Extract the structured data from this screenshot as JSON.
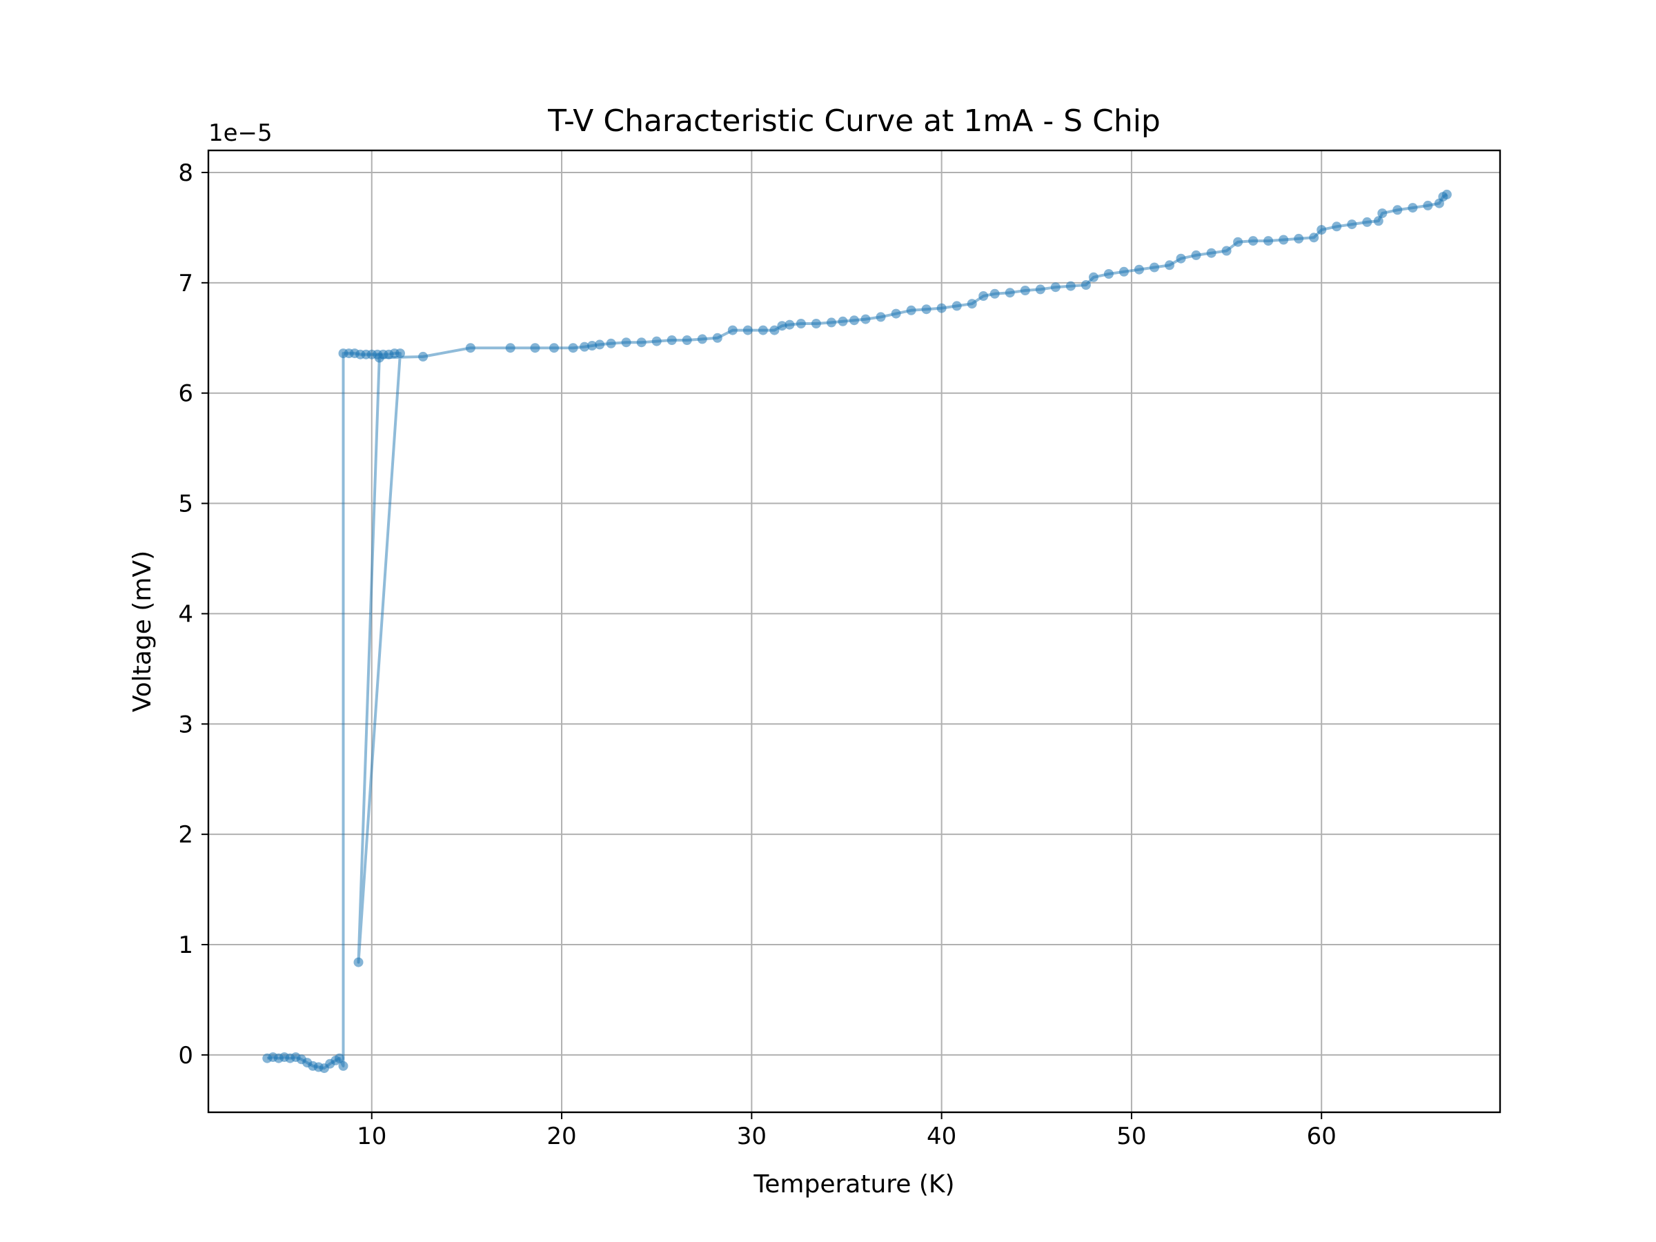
{
  "chart_data": {
    "type": "line",
    "title": "T-V Characteristic Curve at 1mA - S Chip",
    "xlabel": "Temperature (K)",
    "ylabel": "Voltage (mV)",
    "y_offset_label": "1e−5",
    "y_multiplier": 1e-05,
    "xlim": [
      1.4,
      69.4
    ],
    "ylim": [
      -0.52,
      8.2
    ],
    "x_ticks": [
      10,
      20,
      30,
      40,
      50,
      60
    ],
    "x_tick_labels": [
      "10",
      "20",
      "30",
      "40",
      "50",
      "60"
    ],
    "y_ticks": [
      0,
      1,
      2,
      3,
      4,
      5,
      6,
      7,
      8
    ],
    "y_tick_labels": [
      "0",
      "1",
      "2",
      "3",
      "4",
      "5",
      "6",
      "7",
      "8"
    ],
    "grid": true,
    "series_color": "#1f77b4",
    "series": [
      {
        "name": "",
        "x": [
          4.5,
          4.8,
          5.1,
          5.4,
          5.7,
          6.0,
          6.3,
          6.6,
          6.9,
          7.2,
          7.5,
          7.8,
          8.1,
          8.3,
          8.5,
          8.5,
          8.8,
          9.1,
          9.4,
          9.7,
          10.0,
          10.3,
          10.6,
          10.9,
          11.2,
          11.5,
          9.3,
          10.4,
          12.7,
          15.2,
          17.3,
          18.6,
          19.6,
          20.6,
          21.2,
          21.6,
          22.0,
          22.6,
          23.4,
          24.2,
          25.0,
          25.8,
          26.6,
          27.4,
          28.2,
          29.0,
          29.8,
          30.6,
          31.2,
          31.6,
          32.0,
          32.6,
          33.4,
          34.2,
          34.8,
          35.4,
          36.0,
          36.8,
          37.6,
          38.4,
          39.2,
          40.0,
          40.8,
          41.6,
          42.2,
          42.8,
          43.6,
          44.4,
          45.2,
          46.0,
          46.8,
          47.6,
          48.0,
          48.8,
          49.6,
          50.4,
          51.2,
          52.0,
          52.6,
          53.4,
          54.2,
          55.0,
          55.6,
          56.4,
          57.2,
          58.0,
          58.8,
          59.6,
          60.0,
          60.8,
          61.6,
          62.4,
          63.0,
          63.2,
          64.0,
          64.8,
          65.6,
          66.2,
          66.4,
          66.6
        ],
        "y": [
          -0.03,
          -0.02,
          -0.03,
          -0.02,
          -0.03,
          -0.02,
          -0.04,
          -0.07,
          -0.1,
          -0.11,
          -0.12,
          -0.08,
          -0.05,
          -0.03,
          -0.1,
          6.36,
          6.36,
          6.36,
          6.35,
          6.35,
          6.35,
          6.35,
          6.35,
          6.35,
          6.36,
          6.36,
          0.84,
          6.32,
          6.33,
          6.41,
          6.41,
          6.41,
          6.41,
          6.41,
          6.42,
          6.43,
          6.44,
          6.45,
          6.46,
          6.46,
          6.47,
          6.48,
          6.48,
          6.49,
          6.5,
          6.57,
          6.57,
          6.57,
          6.57,
          6.61,
          6.62,
          6.63,
          6.63,
          6.64,
          6.65,
          6.66,
          6.67,
          6.69,
          6.72,
          6.75,
          6.76,
          6.77,
          6.79,
          6.81,
          6.88,
          6.9,
          6.91,
          6.93,
          6.94,
          6.96,
          6.97,
          6.98,
          7.05,
          7.08,
          7.1,
          7.12,
          7.14,
          7.16,
          7.22,
          7.25,
          7.27,
          7.29,
          7.37,
          7.38,
          7.38,
          7.39,
          7.4,
          7.41,
          7.48,
          7.51,
          7.53,
          7.55,
          7.56,
          7.63,
          7.66,
          7.68,
          7.7,
          7.72,
          7.78,
          7.8
        ]
      }
    ]
  }
}
